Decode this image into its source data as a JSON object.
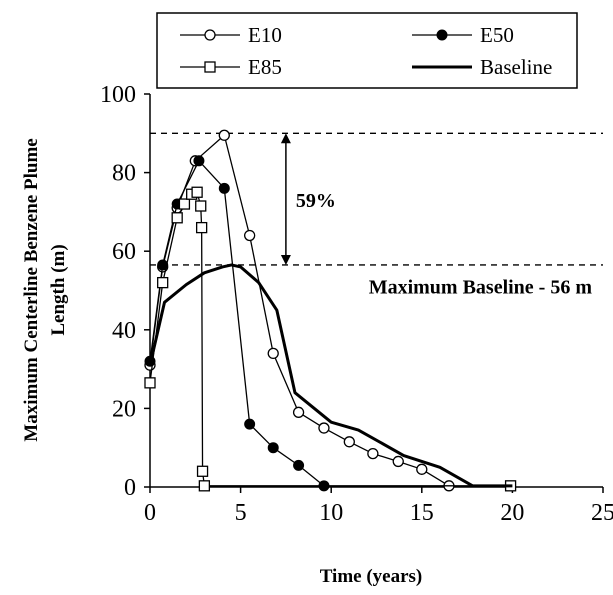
{
  "chart_data": {
    "type": "line",
    "xlabel": "Time (years)",
    "ylabel_lines": [
      "Maximum Centerline Benzene Plume",
      "Length (m)"
    ],
    "xlim": [
      0,
      25
    ],
    "ylim": [
      0,
      100
    ],
    "x_ticks": [
      0,
      5,
      10,
      15,
      20,
      25
    ],
    "y_ticks": [
      0,
      20,
      40,
      60,
      80,
      100
    ],
    "grid": false,
    "legend_position": "top",
    "series": [
      {
        "name": "E10",
        "marker": "open-circle",
        "color": "#000000",
        "points": [
          [
            0,
            31
          ],
          [
            0.7,
            56
          ],
          [
            1.5,
            71
          ],
          [
            2.5,
            83
          ],
          [
            4.1,
            89.5
          ],
          [
            5.5,
            64
          ],
          [
            6.8,
            34
          ],
          [
            8.2,
            19
          ],
          [
            9.6,
            15
          ],
          [
            11,
            11.5
          ],
          [
            12.3,
            8.5
          ],
          [
            13.7,
            6.5
          ],
          [
            15,
            4.5
          ],
          [
            16.5,
            0.3
          ]
        ]
      },
      {
        "name": "E50",
        "marker": "filled-circle",
        "color": "#000000",
        "points": [
          [
            0,
            32
          ],
          [
            0.7,
            56.5
          ],
          [
            1.5,
            72
          ],
          [
            2.7,
            83
          ],
          [
            4.1,
            76
          ],
          [
            5.5,
            16
          ],
          [
            6.8,
            10
          ],
          [
            8.2,
            5.5
          ],
          [
            9.6,
            0.3
          ]
        ]
      },
      {
        "name": "E85",
        "marker": "open-square",
        "color": "#000000",
        "points": [
          [
            0,
            26.5
          ],
          [
            0.7,
            52
          ],
          [
            1.5,
            68.5
          ],
          [
            1.9,
            72
          ],
          [
            2.3,
            74.5
          ],
          [
            2.6,
            75
          ],
          [
            2.8,
            71.5
          ],
          [
            2.85,
            66
          ],
          [
            2.9,
            4
          ],
          [
            3.0,
            0.3
          ],
          [
            19.9,
            0.3
          ]
        ]
      },
      {
        "name": "Baseline",
        "marker": "none",
        "color": "#000000",
        "line_width": "thick",
        "points": [
          [
            0,
            31
          ],
          [
            0.8,
            47
          ],
          [
            2,
            51.5
          ],
          [
            3,
            54.5
          ],
          [
            4,
            56
          ],
          [
            4.5,
            56.5
          ],
          [
            5,
            56
          ],
          [
            6,
            52
          ],
          [
            7,
            45
          ],
          [
            8,
            24
          ],
          [
            10,
            16.5
          ],
          [
            11.5,
            14.5
          ],
          [
            14,
            8
          ],
          [
            16,
            5
          ],
          [
            17.8,
            0.3
          ],
          [
            20,
            0.3
          ]
        ]
      }
    ],
    "reference_lines": [
      {
        "label": "90",
        "y": 90
      },
      {
        "label": "56.5",
        "y": 56.5
      }
    ],
    "annotations": {
      "percent_label": "59%",
      "baseline_label": "Maximum Baseline - 56 m",
      "arrow_x": 7.5,
      "arrow_from": 90,
      "arrow_to": 56.5
    }
  }
}
